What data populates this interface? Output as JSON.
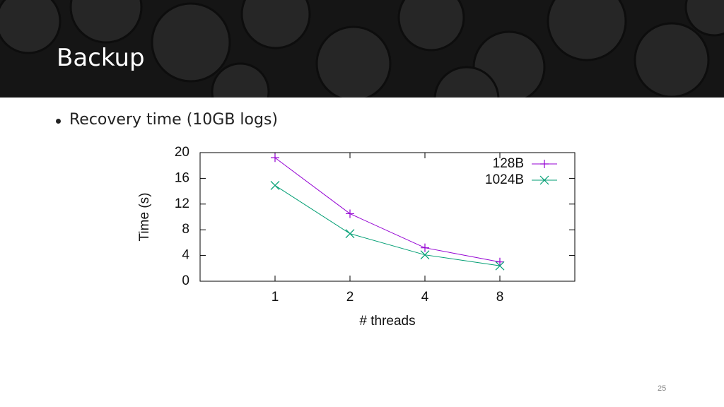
{
  "header": {
    "title": "Backup"
  },
  "bullet": "Recovery time (10GB logs)",
  "page_number": "25",
  "chart_data": {
    "type": "line",
    "x_label": "# threads",
    "y_label": "Time (s)",
    "categories": [
      "1",
      "2",
      "4",
      "8"
    ],
    "series": [
      {
        "name": "128B",
        "color": "#9400d3",
        "marker": "plus",
        "values": [
          19.2,
          10.5,
          5.2,
          3.0
        ]
      },
      {
        "name": "1024B",
        "color": "#009e73",
        "marker": "cross",
        "values": [
          14.9,
          7.4,
          4.1,
          2.4
        ]
      }
    ],
    "ylim": [
      0,
      20
    ],
    "yticks": [
      0,
      4,
      8,
      12,
      16,
      20
    ],
    "legend": "top-right"
  }
}
